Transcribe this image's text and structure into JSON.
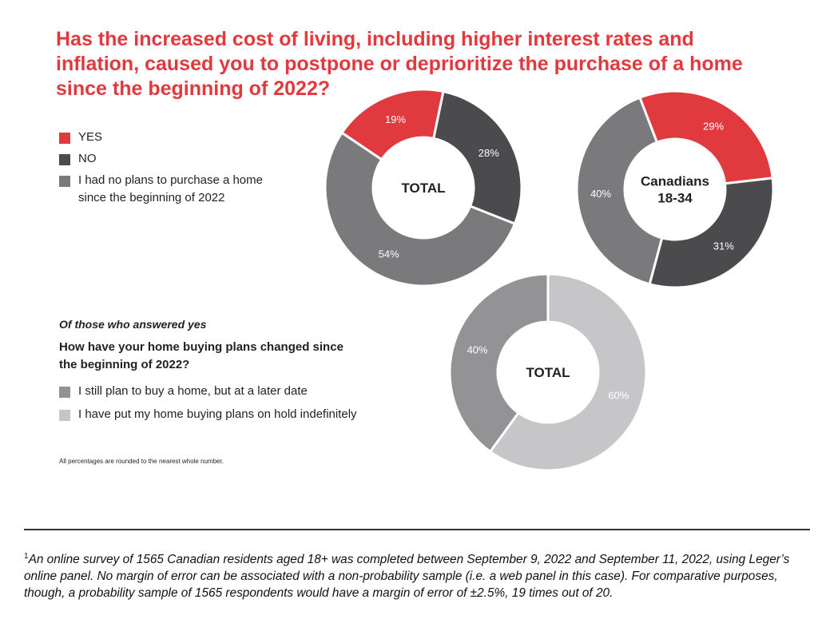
{
  "title_lines": [
    "Has the increased cost of living, including higher interest rates and",
    "inflation, caused you to postpone or deprioritize the purchase of a home",
    "since the beginning of 2022?"
  ],
  "colors": {
    "yes": "#e03a3e",
    "no": "#4b4b4d",
    "no_plans": "#7a7a7c",
    "later": "#939395",
    "on_hold": "#c6c6c8"
  },
  "legend": [
    {
      "lines": [
        "YES"
      ]
    },
    {
      "lines": [
        "NO"
      ]
    },
    {
      "lines": [
        "I had no plans to purchase a home",
        "since the beginning of 2022"
      ]
    }
  ],
  "sub_section": {
    "note": "Of those who answered yes",
    "question_lines": [
      "How have your home buying plans changed since",
      "the beginning of 2022?"
    ],
    "legend": [
      {
        "label": "I still plan to buy a home, but at a later date"
      },
      {
        "label": "I have put my home buying plans on hold indefinitely"
      }
    ]
  },
  "rounding_note": "All percentages are rounded to the nearest whole number.",
  "footnote": {
    "marker": "1",
    "text": "An online survey of 1565 Canadian residents aged 18+ was completed between September 9, 2022 and September 11, 2022, using Leger’s online panel. No margin of error can be associated with a non-probability sample (i.e. a web panel in this case). For comparative purposes, though, a probability sample of 1565 respondents would have a margin of error of ±2.5%, 19 times out of 20."
  },
  "chart_data": [
    {
      "type": "pie",
      "donut": true,
      "center_label": [
        "TOTAL"
      ],
      "categories": [
        "YES",
        "NO",
        "I had no plans to purchase a home since the beginning of 2022"
      ],
      "values": [
        19,
        28,
        54
      ],
      "labels": [
        "19%",
        "28%",
        "54%"
      ],
      "color_keys": [
        "yes",
        "no",
        "no_plans"
      ]
    },
    {
      "type": "pie",
      "donut": true,
      "center_label": [
        "Canadians",
        "18-34"
      ],
      "categories": [
        "YES",
        "NO",
        "I had no plans to purchase a home since the beginning of 2022"
      ],
      "values": [
        29,
        31,
        40
      ],
      "labels": [
        "29%",
        "31%",
        "40%"
      ],
      "color_keys": [
        "yes",
        "no",
        "no_plans"
      ]
    },
    {
      "type": "pie",
      "donut": true,
      "center_label": [
        "TOTAL"
      ],
      "categories": [
        "I still plan to buy a home, but at a later date",
        "I have put my home buying plans on hold indefinitely"
      ],
      "values": [
        40,
        60
      ],
      "labels": [
        "40%",
        "60%"
      ],
      "color_keys": [
        "later",
        "on_hold"
      ]
    }
  ]
}
